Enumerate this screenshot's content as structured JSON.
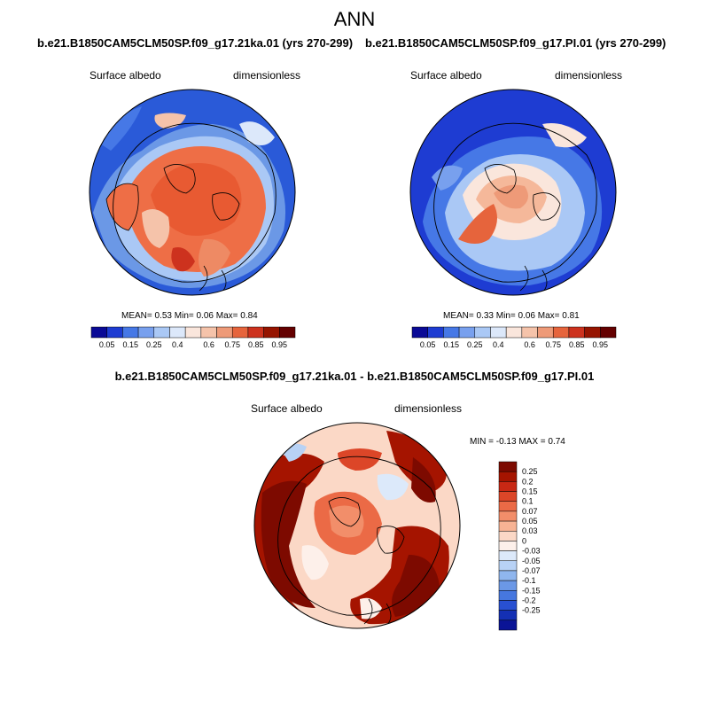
{
  "title": "ANN",
  "panels": [
    {
      "case": "b.e21.B1850CAM5CLM50SP.f09_g17.21ka.01 (yrs 270-299)",
      "variable": "Surface albedo",
      "units": "dimensionless",
      "stats": {
        "mean_label": "MEAN=",
        "mean": "0.53",
        "min_label": "Min=",
        "min": "0.06",
        "max_label": "Max=",
        "max": "0.84"
      }
    },
    {
      "case": "b.e21.B1850CAM5CLM50SP.f09_g17.PI.01 (yrs 270-299)",
      "variable": "Surface albedo",
      "units": "dimensionless",
      "stats": {
        "mean_label": "MEAN=",
        "mean": "0.33",
        "min_label": "Min=",
        "min": "0.06",
        "max_label": "Max=",
        "max": "0.81"
      }
    }
  ],
  "abs_colorbar": {
    "labels": [
      "0.05",
      "0.15",
      "0.25",
      "0.4",
      "0.6",
      "0.75",
      "0.85",
      "0.95"
    ],
    "colors": [
      "#0a0a96",
      "#1e3cd2",
      "#4678e6",
      "#78a0ee",
      "#aac8f5",
      "#dce8fa",
      "#fae6dc",
      "#f5c3aa",
      "#ee9a78",
      "#e6643c",
      "#cd321e",
      "#961400",
      "#640000"
    ]
  },
  "diff_panel": {
    "title": "b.e21.B1850CAM5CLM50SP.f09_g17.21ka.01 - b.e21.B1850CAM5CLM50SP.f09_g17.PI.01",
    "variable": "Surface albedo",
    "units": "dimensionless",
    "stats": {
      "min_label": "MIN =",
      "min": "-0.13",
      "max_label": "MAX =",
      "max": "0.74"
    }
  },
  "diff_colorbar": {
    "labels": [
      "0.25",
      "0.2",
      "0.15",
      "0.1",
      "0.07",
      "0.05",
      "0.03",
      "0",
      "-0.03",
      "-0.05",
      "-0.07",
      "-0.1",
      "-0.15",
      "-0.2",
      "-0.25"
    ],
    "colors": [
      "#7d0a00",
      "#a51400",
      "#c82814",
      "#dc4628",
      "#eb6a46",
      "#f28e6a",
      "#f7b394",
      "#fbd8c6",
      "#fdf0ea",
      "#dce9fa",
      "#b8d2f5",
      "#8fb6ee",
      "#6b98e6",
      "#4677df",
      "#2850d2",
      "#1430b4",
      "#0a1496"
    ]
  }
}
